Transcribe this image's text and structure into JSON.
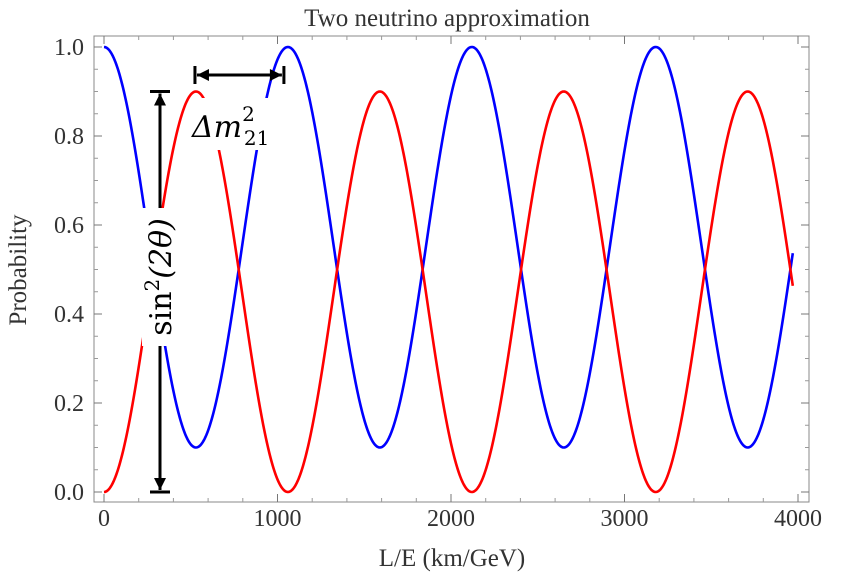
{
  "chart_data": {
    "type": "line",
    "title": "Two neutrino approximation",
    "xlabel": "L/E (km/GeV)",
    "ylabel": "Probability",
    "xlim": [
      0,
      4000
    ],
    "ylim": [
      0,
      1
    ],
    "x_ticks": [
      "0",
      "1000",
      "2000",
      "3000",
      "4000"
    ],
    "y_ticks": [
      "0.0",
      "0.2",
      "0.4",
      "0.6",
      "0.8",
      "1.0"
    ],
    "grid": false,
    "legend": "none",
    "model": {
      "amplitude": 0.9,
      "first_peak_x": 530,
      "x_end": 3970
    },
    "series": [
      {
        "color": "#0000ff",
        "description": "1 - 0.9 sin^2(pi x / 1060)",
        "x": [
          0,
          265,
          530,
          795,
          1060,
          1325,
          1590,
          1855,
          2120,
          2385,
          2650,
          2915,
          3180,
          3445,
          3710,
          3970
        ],
        "values": [
          1.0,
          0.55,
          0.1,
          0.55,
          1.0,
          0.55,
          0.1,
          0.55,
          1.0,
          0.55,
          0.1,
          0.55,
          1.0,
          0.55,
          0.1,
          0.53
        ]
      },
      {
        "color": "#ff0000",
        "description": "0.9 sin^2(pi x / 1060)",
        "x": [
          0,
          265,
          530,
          795,
          1060,
          1325,
          1590,
          1855,
          2120,
          2385,
          2650,
          2915,
          3180,
          3445,
          3710,
          3970
        ],
        "values": [
          0.0,
          0.45,
          0.9,
          0.45,
          0.0,
          0.45,
          0.9,
          0.45,
          0.0,
          0.45,
          0.9,
          0.45,
          0.0,
          0.45,
          0.9,
          0.47
        ]
      }
    ],
    "annotations": {
      "amplitude_label_base": "sin",
      "amplitude_label_sup": "2",
      "amplitude_label_arg": "(2θ)",
      "amplitude_from": 0.0,
      "amplitude_to": 0.9,
      "period_label_base": "Δm",
      "period_label_sup": "2",
      "period_label_sub": "21",
      "period_from_x": 530,
      "period_to_x": 1060
    }
  }
}
